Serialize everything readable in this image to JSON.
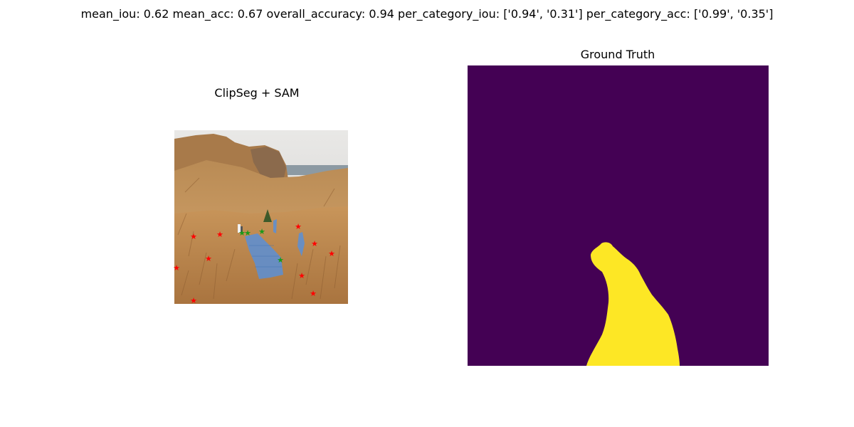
{
  "chart_data": {
    "type": "image-panels",
    "suptitle": "mean_iou: 0.62  mean_acc: 0.67  overall_accuracy: 0.94  per_category_iou: ['0.94', '0.31']  per_category_acc: ['0.99', '0.35']",
    "metrics": {
      "mean_iou": 0.62,
      "mean_acc": 0.67,
      "overall_accuracy": 0.94,
      "per_category_iou": [
        "0.94",
        "0.31"
      ],
      "per_category_acc": [
        "0.99",
        "0.35"
      ]
    },
    "panels": [
      {
        "title": "ClipSeg + SAM",
        "content": "hillside trail photo with predicted mask overlay and point prompts",
        "mask_color": "#5b8fd6",
        "positive_point_color": "#1a9a1a",
        "negative_point_color": "#ff0000",
        "positive_points": 4,
        "negative_points": 11
      },
      {
        "title": "Ground Truth",
        "content": "binary segmentation mask",
        "background_color": "#440154",
        "foreground_color": "#fde725"
      }
    ]
  }
}
